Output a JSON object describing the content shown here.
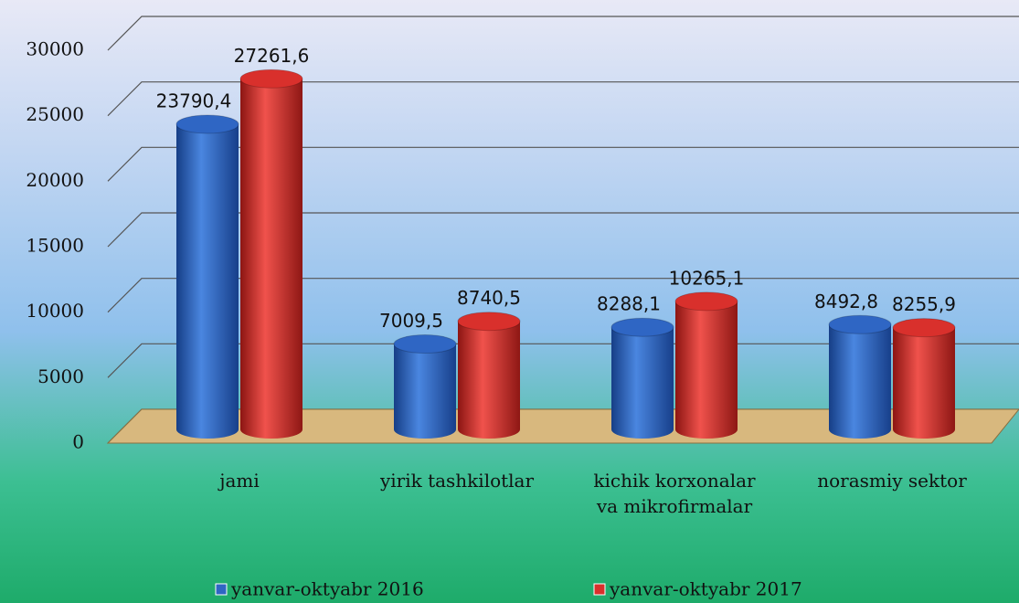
{
  "chart_data": {
    "type": "bar3d",
    "categories": [
      "jami",
      "yirik tashkilotlar",
      "kichik korxonalar\nva mikrofirmalar",
      "norasmiy sektor"
    ],
    "series": [
      {
        "name": "yanvar-oktyabr 2016",
        "color": "#2f66c4",
        "values": [
          23790.4,
          7009.5,
          8288.1,
          8492.8
        ],
        "value_labels": [
          "23790,4",
          "7009,5",
          "8288,1",
          "8492,8"
        ]
      },
      {
        "name": "yanvar-oktyabr 2017",
        "color": "#d9302c",
        "values": [
          27261.6,
          8740.5,
          10265.1,
          8255.9
        ],
        "value_labels": [
          "27261,6",
          "8740,5",
          "10265,1",
          "8255,9"
        ]
      }
    ],
    "ylim": [
      0,
      30000
    ],
    "yticks": [
      0,
      5000,
      10000,
      15000,
      20000,
      25000,
      30000
    ],
    "grid": true,
    "legend": "bottom"
  }
}
